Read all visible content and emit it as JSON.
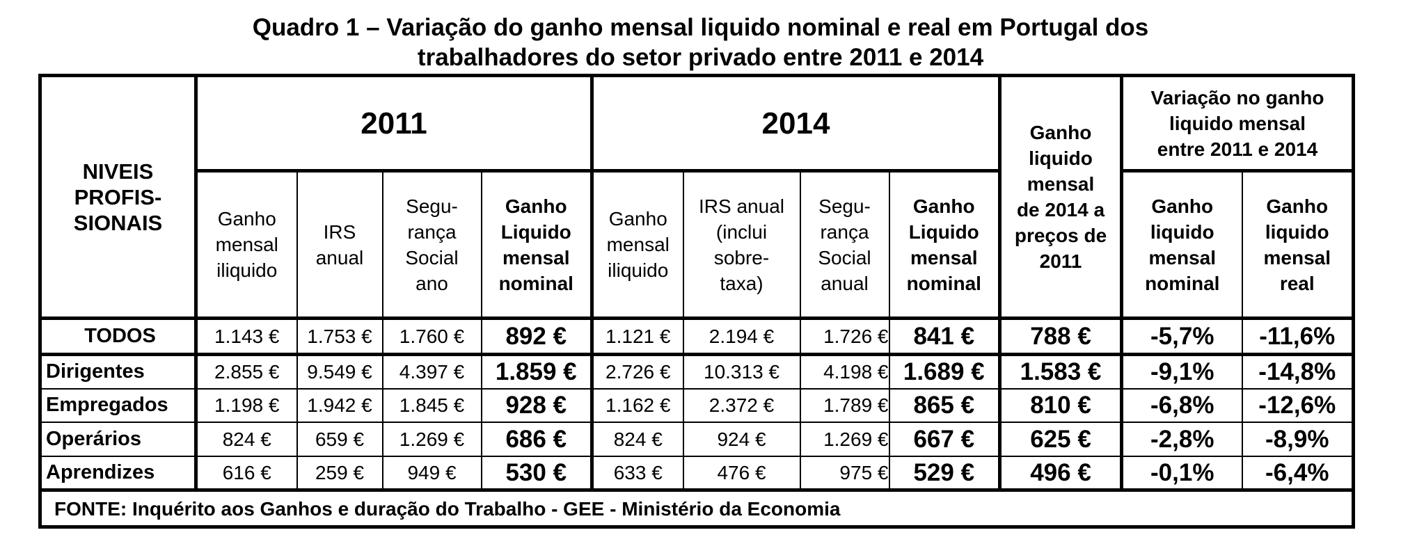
{
  "title": {
    "line1": "Quadro 1 – Variação do ganho mensal liquido nominal e real em Portugal dos",
    "line2": "trabalhadores do setor privado entre 2011 e 2014"
  },
  "headers": {
    "niveis": [
      "NIVEIS",
      "PROFIS-",
      "SIONAIS"
    ],
    "year_2011": "2011",
    "year_2014": "2014",
    "real_2014": [
      "Ganho",
      "liquido",
      "mensal",
      "de 2014 a",
      "preços de",
      "2011"
    ],
    "variacao": [
      "Variação no ganho",
      "liquido mensal",
      "entre 2011 e 2014"
    ],
    "cols_2011": [
      [
        "Ganho",
        "mensal",
        "iliquido"
      ],
      [
        "IRS",
        "anual"
      ],
      [
        "Segu-",
        "rança",
        "Social",
        "ano"
      ],
      [
        "Ganho",
        "Liquido",
        "mensal",
        "nominal"
      ]
    ],
    "cols_2014": [
      [
        "Ganho",
        "mensal",
        "iliquido"
      ],
      [
        "IRS anual",
        "(inclui",
        "sobre-",
        "taxa)"
      ],
      [
        "Segu-",
        "rança",
        "Social",
        "anual"
      ],
      [
        "Ganho",
        "Liquido",
        "mensal",
        "nominal"
      ]
    ],
    "cols_var": [
      [
        "Ganho",
        "liquido",
        "mensal",
        "nominal"
      ],
      [
        "Ganho",
        "liquido",
        "mensal",
        "real"
      ]
    ]
  },
  "rows": [
    {
      "label": "TODOS",
      "v": [
        "1.143 €",
        "1.753 €",
        "1.760 €",
        "892 €",
        "1.121 €",
        "2.194 €",
        "1.726 €",
        "841 €",
        "788 €",
        "-5,7%",
        "-11,6%"
      ]
    },
    {
      "label": "Dirigentes",
      "v": [
        "2.855 €",
        "9.549 €",
        "4.397 €",
        "1.859 €",
        "2.726 €",
        "10.313 €",
        "4.198 €",
        "1.689 €",
        "1.583 €",
        "-9,1%",
        "-14,8%"
      ]
    },
    {
      "label": "Empregados",
      "v": [
        "1.198 €",
        "1.942 €",
        "1.845 €",
        "928 €",
        "1.162 €",
        "2.372 €",
        "1.789 €",
        "865 €",
        "810 €",
        "-6,8%",
        "-12,6%"
      ]
    },
    {
      "label": "Operários",
      "v": [
        "824 €",
        "659 €",
        "1.269 €",
        "686 €",
        "824 €",
        "924 €",
        "1.269 €",
        "667 €",
        "625 €",
        "-2,8%",
        "-8,9%"
      ]
    },
    {
      "label": "Aprendizes",
      "v": [
        "616 €",
        "259 €",
        "949 €",
        "530 €",
        "633 €",
        "476 €",
        "975 €",
        "529 €",
        "496 €",
        "-0,1%",
        "-6,4%"
      ]
    }
  ],
  "footer": "FONTE: Inquérito aos Ganhos e duração do Trabalho - GEE - Ministério da Economia"
}
